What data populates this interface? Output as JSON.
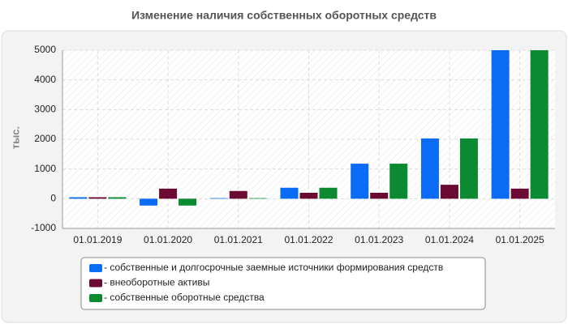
{
  "chart_data": {
    "type": "bar",
    "title": "Изменение наличия собственных оборотных средств",
    "y_label": "тыс.",
    "categories": [
      "01.01.2019",
      "01.01.2020",
      "01.01.2021",
      "01.01.2022",
      "01.01.2023",
      "01.01.2024",
      "01.01.2025"
    ],
    "series": [
      {
        "name": "- собственные и долгосрочные заемные источники формирования средств",
        "color": "#0a6cf5",
        "values": [
          50,
          -230,
          20,
          370,
          1180,
          2030,
          5000
        ]
      },
      {
        "name": "- внеоборотные активы",
        "color": "#6b0b34",
        "values": [
          50,
          340,
          260,
          200,
          200,
          470,
          340
        ]
      },
      {
        "name": "- собственные оборотные средства",
        "color": "#0b8a31",
        "values": [
          50,
          -230,
          20,
          370,
          1180,
          2030,
          5000
        ]
      }
    ],
    "ylim": [
      -1000,
      5000
    ],
    "yticks": [
      -1000,
      0,
      1000,
      2000,
      3000,
      4000,
      5000
    ],
    "grid": true
  }
}
